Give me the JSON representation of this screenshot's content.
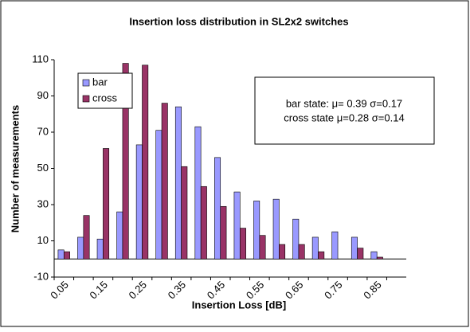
{
  "chart_data": {
    "type": "bar",
    "title": "Insertion loss distribution in SL2x2 switches",
    "xlabel": "Insertion Loss [dB]",
    "ylabel": "Number of measurements",
    "categories": [
      "0.05",
      null,
      "0.15",
      null,
      "0.25",
      null,
      "0.35",
      null,
      "0.45",
      null,
      "0.55",
      null,
      "0.65",
      null,
      "0.75",
      null,
      "0.85",
      null
    ],
    "series": [
      {
        "name": "bar",
        "color": "#9999ff",
        "values": [
          5,
          12,
          11,
          26,
          63,
          71,
          84,
          73,
          56,
          37,
          32,
          33,
          22,
          12,
          15,
          12,
          4,
          0
        ]
      },
      {
        "name": "cross",
        "color": "#993366",
        "values": [
          4,
          24,
          61,
          108,
          107,
          86,
          51,
          40,
          29,
          17,
          13,
          8,
          8,
          4,
          0,
          6,
          1,
          0
        ]
      }
    ],
    "ylim": [
      -10,
      110
    ],
    "yticks": [
      -10,
      10,
      30,
      50,
      70,
      90,
      110
    ],
    "legend": "upper left",
    "annotations": [
      "bar state: μ= 0.39 σ=0.17",
      "cross state μ=0.28 σ=0.14"
    ]
  }
}
